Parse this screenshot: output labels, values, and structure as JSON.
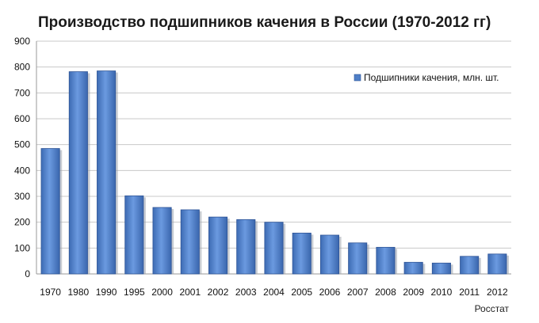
{
  "chart_data": {
    "type": "bar",
    "title": "Производство подшипников качения в России (1970-2012 гг)",
    "source": "Росстат",
    "categories": [
      "1970",
      "1980",
      "1990",
      "1995",
      "2000",
      "2001",
      "2002",
      "2003",
      "2004",
      "2005",
      "2006",
      "2007",
      "2008",
      "2009",
      "2010",
      "2011",
      "2012"
    ],
    "series": [
      {
        "name": "Подшипники качения, млн. шт.",
        "values": [
          485,
          782,
          785,
          302,
          257,
          248,
          220,
          210,
          200,
          158,
          150,
          120,
          103,
          45,
          42,
          68,
          77
        ],
        "color": "#4f7fc7"
      }
    ],
    "ylim": [
      0,
      900
    ],
    "yticks": [
      0,
      100,
      200,
      300,
      400,
      500,
      600,
      700,
      800,
      900
    ],
    "grid": true,
    "legend_position": "top-right"
  }
}
